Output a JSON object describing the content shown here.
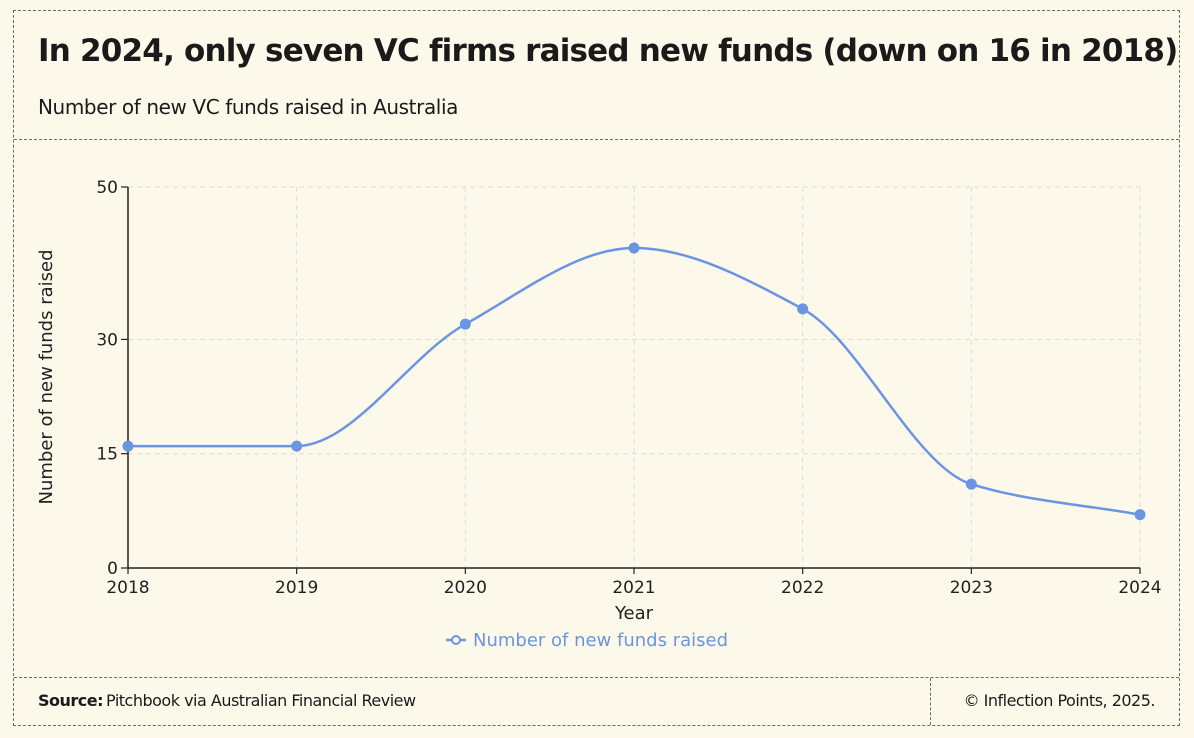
{
  "header": {
    "title": "In 2024, only seven VC firms raised new funds (down on 16 in 2018)",
    "subtitle": "Number of new VC funds raised in Australia"
  },
  "footer": {
    "source_label": "Source:",
    "source_text": "Pitchbook via Australian Financial Review",
    "copyright": "© Inflection Points, 2025."
  },
  "colors": {
    "series": "#6b94e2",
    "axis": "#222222",
    "grid": "#dcdcdc",
    "background": "#fdf9ea"
  },
  "chart_data": {
    "type": "line",
    "title": "Number of new VC funds raised in Australia",
    "xlabel": "Year",
    "ylabel": "Number of new funds raised",
    "categories": [
      "2018",
      "2019",
      "2020",
      "2021",
      "2022",
      "2023",
      "2024"
    ],
    "series": [
      {
        "name": "Number of new funds raised",
        "values": [
          16,
          16,
          32,
          42,
          34,
          11,
          7
        ]
      }
    ],
    "ylim": [
      0,
      50
    ],
    "yticks": [
      0,
      15,
      30,
      50
    ],
    "grid": true,
    "smooth": true,
    "legend": "bottom-center"
  }
}
